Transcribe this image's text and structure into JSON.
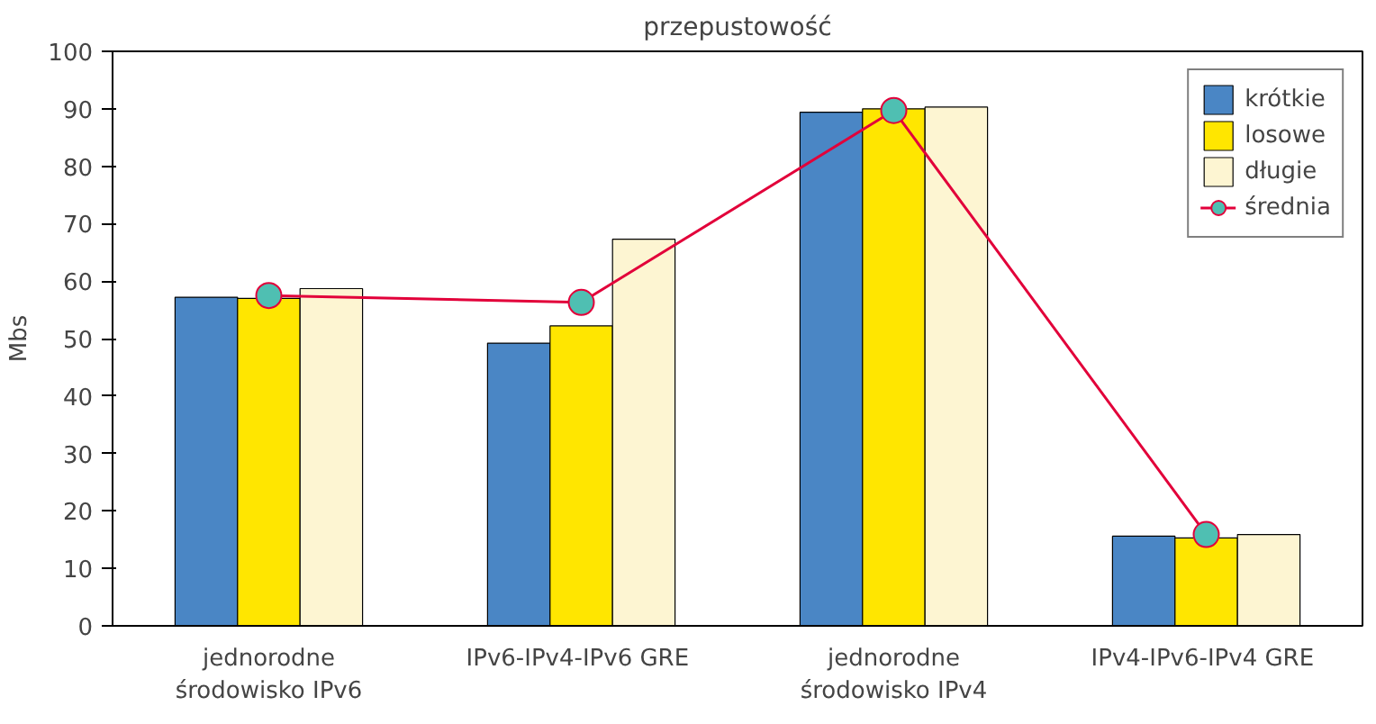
{
  "chart_data": {
    "type": "bar",
    "title": "przepustowość",
    "ylabel": "Mbs",
    "categories": [
      "jednorodne\nśrodowisko IPv6",
      "IPv6-IPv4-IPv6  GRE",
      "jednorodne\nśrodowisko IPv4",
      "IPv4-IPv6-IPv4  GRE"
    ],
    "series": [
      {
        "name": "krótkie",
        "color": "#4a86c5",
        "values": [
          57.2,
          49.2,
          89.4,
          15.6
        ]
      },
      {
        "name": "losowe",
        "color": "#ffe600",
        "values": [
          57,
          52.2,
          90,
          15.3
        ]
      },
      {
        "name": "długie",
        "color": "#fdf5d2",
        "values": [
          58.7,
          67.3,
          90.3,
          15.9
        ]
      },
      {
        "name": "średnia",
        "type": "line",
        "color": "#e2003a",
        "colors": [
          "#4fbfb2",
          "#4fbfb2",
          "#4fbfb2",
          "#4fbfb2"
        ],
        "marker": "circle",
        "values": [
          57.5,
          56.3,
          89.7,
          15.9
        ]
      }
    ],
    "ylim": [
      0,
      100
    ],
    "yticks": [
      0,
      10,
      20,
      30,
      40,
      50,
      60,
      70,
      80,
      90,
      100
    ],
    "grid": false,
    "legend": "top right"
  }
}
